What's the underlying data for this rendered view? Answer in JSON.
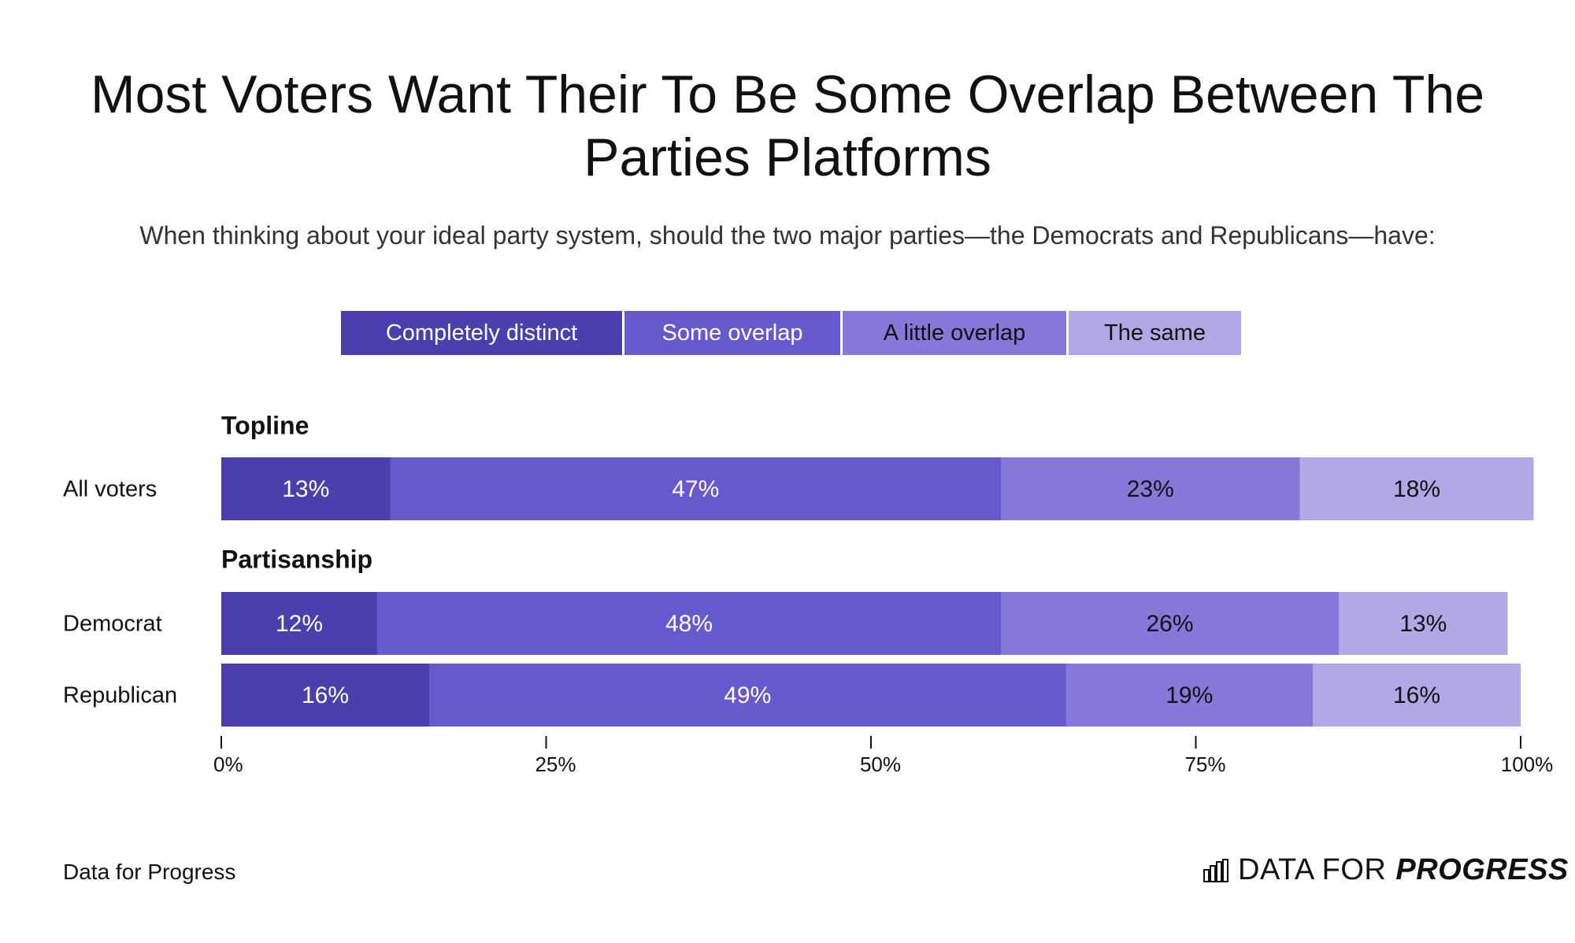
{
  "colors": {
    "completely_distinct": "#4a3fad",
    "some_overlap": "#6759cd",
    "a_little_overlap": "#8578d8",
    "the_same": "#b3a7e6",
    "text_light": "#ffffff",
    "text_dark": "#111111"
  },
  "header": {
    "title": "Most Voters Want Their To Be Some Overlap Between The Parties Platforms",
    "subtitle": "When thinking about your ideal party system, should the two major parties—the Democrats and Republicans—have:"
  },
  "legend": {
    "items": [
      {
        "label": "Completely distinct"
      },
      {
        "label": "Some overlap"
      },
      {
        "label": "A little overlap"
      },
      {
        "label": "The same"
      }
    ]
  },
  "chart_data": {
    "type": "bar",
    "orientation": "horizontal",
    "stacked": true,
    "xlim": [
      0,
      100
    ],
    "x_ticks": [
      0,
      25,
      50,
      75,
      100
    ],
    "x_tick_labels": [
      "0%",
      "25%",
      "50%",
      "75%",
      "100%"
    ],
    "series_names": [
      "Completely distinct",
      "Some overlap",
      "A little overlap",
      "The same"
    ],
    "groups": [
      {
        "label": "Topline",
        "rows": [
          {
            "label": "All voters",
            "values": [
              13,
              47,
              23,
              18
            ],
            "value_labels": [
              "13%",
              "47%",
              "23%",
              "18%"
            ]
          }
        ]
      },
      {
        "label": "Partisanship",
        "rows": [
          {
            "label": "Democrat",
            "values": [
              12,
              48,
              26,
              13
            ],
            "value_labels": [
              "12%",
              "48%",
              "26%",
              "13%"
            ]
          },
          {
            "label": "Republican",
            "values": [
              16,
              49,
              19,
              16
            ],
            "value_labels": [
              "16%",
              "49%",
              "19%",
              "16%"
            ]
          }
        ]
      }
    ],
    "grid": false
  },
  "footer": {
    "source": "Data for Progress",
    "brand_part1": "DATA FOR",
    "brand_part2": "PROGRESS"
  }
}
